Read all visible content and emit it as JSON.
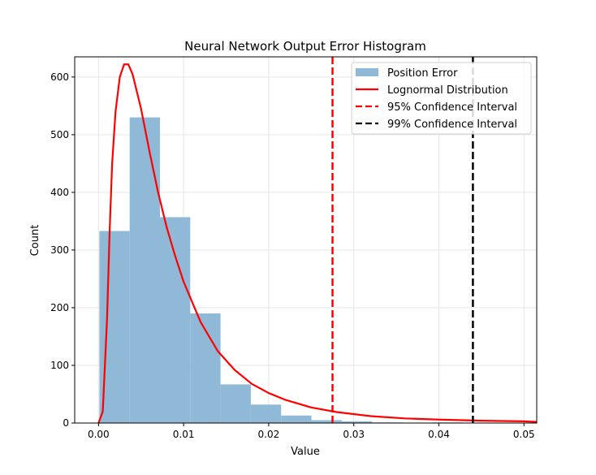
{
  "chart_data": {
    "type": "bar",
    "title": "Neural Network Output Error Histogram",
    "xlabel": "Value",
    "ylabel": "Count",
    "xlim": [
      -0.0028,
      0.0515
    ],
    "ylim": [
      0,
      635
    ],
    "grid": true,
    "legend_position": "upper right",
    "x_ticks": [
      "0.00",
      "0.01",
      "0.02",
      "0.03",
      "0.04",
      "0.05"
    ],
    "x_tick_values": [
      0.0,
      0.01,
      0.02,
      0.03,
      0.04,
      0.05
    ],
    "y_ticks": [
      "0",
      "100",
      "200",
      "300",
      "400",
      "500",
      "600"
    ],
    "y_tick_values": [
      0,
      100,
      200,
      300,
      400,
      500,
      600
    ],
    "histogram": {
      "name": "Position Error",
      "color": "#8fb9d7",
      "bin_edges": [
        0.0001,
        0.00366,
        0.00722,
        0.01078,
        0.01434,
        0.0179,
        0.02146,
        0.02502,
        0.02858,
        0.03214,
        0.0357,
        0.03926,
        0.04282,
        0.04638,
        0.04994
      ],
      "counts": [
        333,
        530,
        357,
        190,
        67,
        32,
        13,
        5,
        3,
        1,
        0,
        1,
        0,
        0
      ]
    },
    "series": [
      {
        "name": "Lognormal Distribution",
        "type": "line",
        "color": "#ff0000",
        "style": "solid",
        "x": [
          0.0,
          0.0005,
          0.001,
          0.0013,
          0.0016,
          0.002,
          0.0025,
          0.003,
          0.0035,
          0.004,
          0.005,
          0.006,
          0.007,
          0.008,
          0.009,
          0.01,
          0.012,
          0.014,
          0.016,
          0.018,
          0.02,
          0.022,
          0.025,
          0.028,
          0.032,
          0.036,
          0.04,
          0.045,
          0.05,
          0.0515
        ],
        "y": [
          0,
          20,
          180,
          330,
          450,
          540,
          600,
          622,
          622,
          605,
          545,
          470,
          400,
          340,
          290,
          245,
          175,
          125,
          92,
          68,
          52,
          40,
          27,
          19,
          12,
          8,
          6,
          4,
          3,
          2
        ]
      },
      {
        "name": "95% Confidence Interval",
        "type": "vline",
        "color": "#ff0000",
        "style": "dashed",
        "x": 0.0275
      },
      {
        "name": "99% Confidence Interval",
        "type": "vline",
        "color": "#000000",
        "style": "dashed",
        "x": 0.044
      }
    ],
    "legend": [
      "Position Error",
      "Lognormal Distribution",
      "95% Confidence Interval",
      "99% Confidence Interval"
    ]
  }
}
